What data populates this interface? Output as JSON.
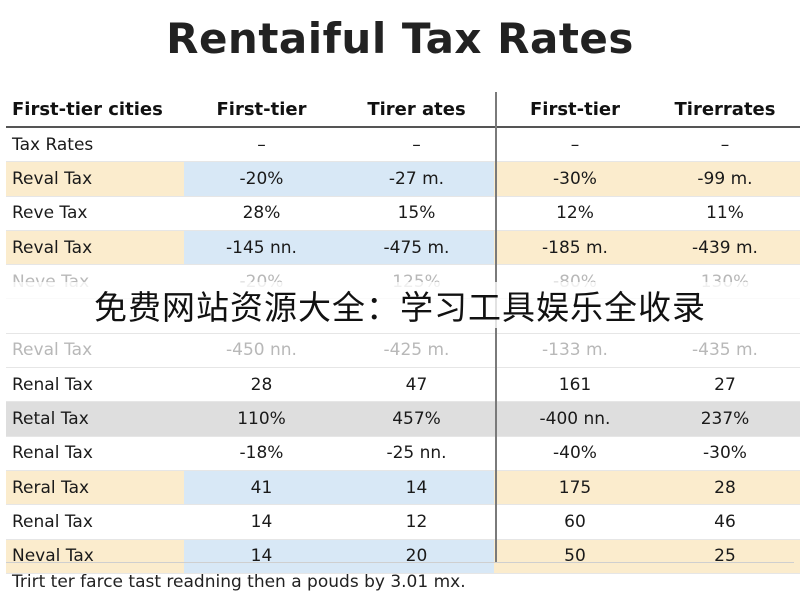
{
  "title": "Rentaiful Tax Rates",
  "table": {
    "headers": [
      "First-tier cities",
      "First-tier",
      "Tirer ates",
      "First-tier",
      "Tirerrates"
    ],
    "rows": [
      {
        "style": "plain",
        "cells": [
          "Tax Rates",
          "–",
          "–",
          "–",
          "–"
        ]
      },
      {
        "style": "orange",
        "cells": [
          "Reval Tax",
          "-20%",
          "-27 m.",
          "-30%",
          "-99 m."
        ]
      },
      {
        "style": "plain",
        "cells": [
          "Reve Tax",
          "28%",
          "15%",
          "12%",
          "11%"
        ]
      },
      {
        "style": "orange",
        "cells": [
          "Reval Tax",
          "-145 nn.",
          "-475 m.",
          "-185 m.",
          "-439 m."
        ]
      },
      {
        "style": "faded",
        "cells": [
          "Neve Tax",
          "-20%",
          "125%",
          "-80%",
          "130%"
        ]
      },
      {
        "style": "faded",
        "cells": [
          "",
          "",
          "",
          "",
          ""
        ]
      },
      {
        "style": "faded",
        "cells": [
          "Reval Tax",
          "-450 nn.",
          "-425 m.",
          "-133 m.",
          "-435 m."
        ]
      },
      {
        "style": "plain",
        "cells": [
          "Renal Tax",
          "28",
          "47",
          "161",
          "27"
        ]
      },
      {
        "style": "gray",
        "cells": [
          "Retal Tax",
          "110%",
          "457%",
          "-400 nn.",
          "237%"
        ]
      },
      {
        "style": "plain",
        "cells": [
          "Renal Tax",
          "-18%",
          "-25 nn.",
          "-40%",
          "-30%"
        ]
      },
      {
        "style": "orange",
        "cells": [
          "Reral Tax",
          "41",
          "14",
          "175",
          "28"
        ]
      },
      {
        "style": "plain",
        "cells": [
          "Renal Tax",
          "14",
          "12",
          "60",
          "46"
        ]
      },
      {
        "style": "orange",
        "cells": [
          "Neval Tax",
          "14",
          "20",
          "50",
          "25"
        ]
      }
    ]
  },
  "watermark": "免费网站资源大全：学习工具娱乐全收录",
  "footnote": "Trirt ter farce tast readning then a pouds by 3.01 mx."
}
